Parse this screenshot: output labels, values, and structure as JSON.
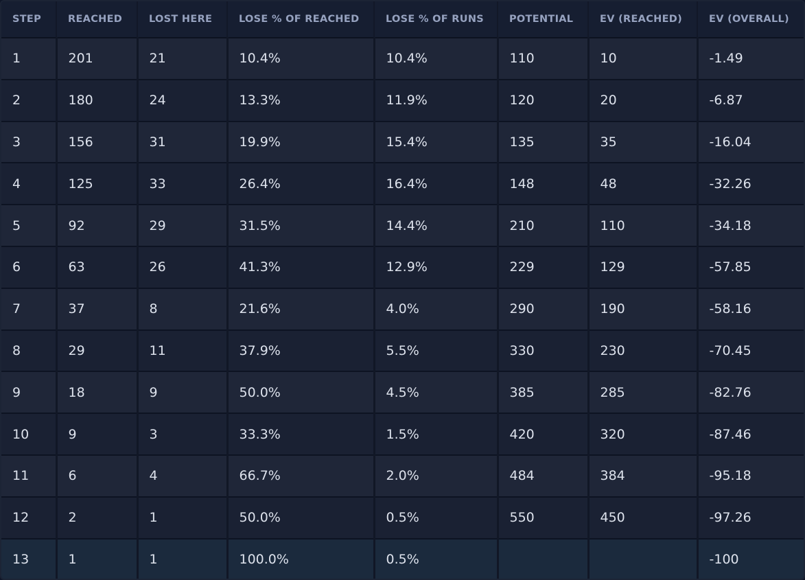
{
  "table": {
    "columns": [
      "STEP",
      "REACHED",
      "LOST HERE",
      "LOSE % OF REACHED",
      "LOSE % OF RUNS",
      "POTENTIAL",
      "EV (REACHED)",
      "EV (OVERALL)"
    ],
    "rows": [
      [
        "1",
        "201",
        "21",
        "10.4%",
        "10.4%",
        "110",
        "10",
        "-1.49"
      ],
      [
        "2",
        "180",
        "24",
        "13.3%",
        "11.9%",
        "120",
        "20",
        "-6.87"
      ],
      [
        "3",
        "156",
        "31",
        "19.9%",
        "15.4%",
        "135",
        "35",
        "-16.04"
      ],
      [
        "4",
        "125",
        "33",
        "26.4%",
        "16.4%",
        "148",
        "48",
        "-32.26"
      ],
      [
        "5",
        "92",
        "29",
        "31.5%",
        "14.4%",
        "210",
        "110",
        "-34.18"
      ],
      [
        "6",
        "63",
        "26",
        "41.3%",
        "12.9%",
        "229",
        "129",
        "-57.85"
      ],
      [
        "7",
        "37",
        "8",
        "21.6%",
        "4.0%",
        "290",
        "190",
        "-58.16"
      ],
      [
        "8",
        "29",
        "11",
        "37.9%",
        "5.5%",
        "330",
        "230",
        "-70.45"
      ],
      [
        "9",
        "18",
        "9",
        "50.0%",
        "4.5%",
        "385",
        "285",
        "-82.76"
      ],
      [
        "10",
        "9",
        "3",
        "33.3%",
        "1.5%",
        "420",
        "320",
        "-87.46"
      ],
      [
        "11",
        "6",
        "4",
        "66.7%",
        "2.0%",
        "484",
        "384",
        "-95.18"
      ],
      [
        "12",
        "2",
        "1",
        "50.0%",
        "0.5%",
        "550",
        "450",
        "-97.26"
      ],
      [
        "13",
        "1",
        "1",
        "100.0%",
        "0.5%",
        "",
        "",
        "-100"
      ]
    ]
  },
  "colors": {
    "background": "#121a2c",
    "header_text": "#96a2bf",
    "cell_text": "#dde2ec",
    "row_odd": "#1f2638",
    "row_even": "#1a2133",
    "row_last": "#1b2a3d"
  }
}
